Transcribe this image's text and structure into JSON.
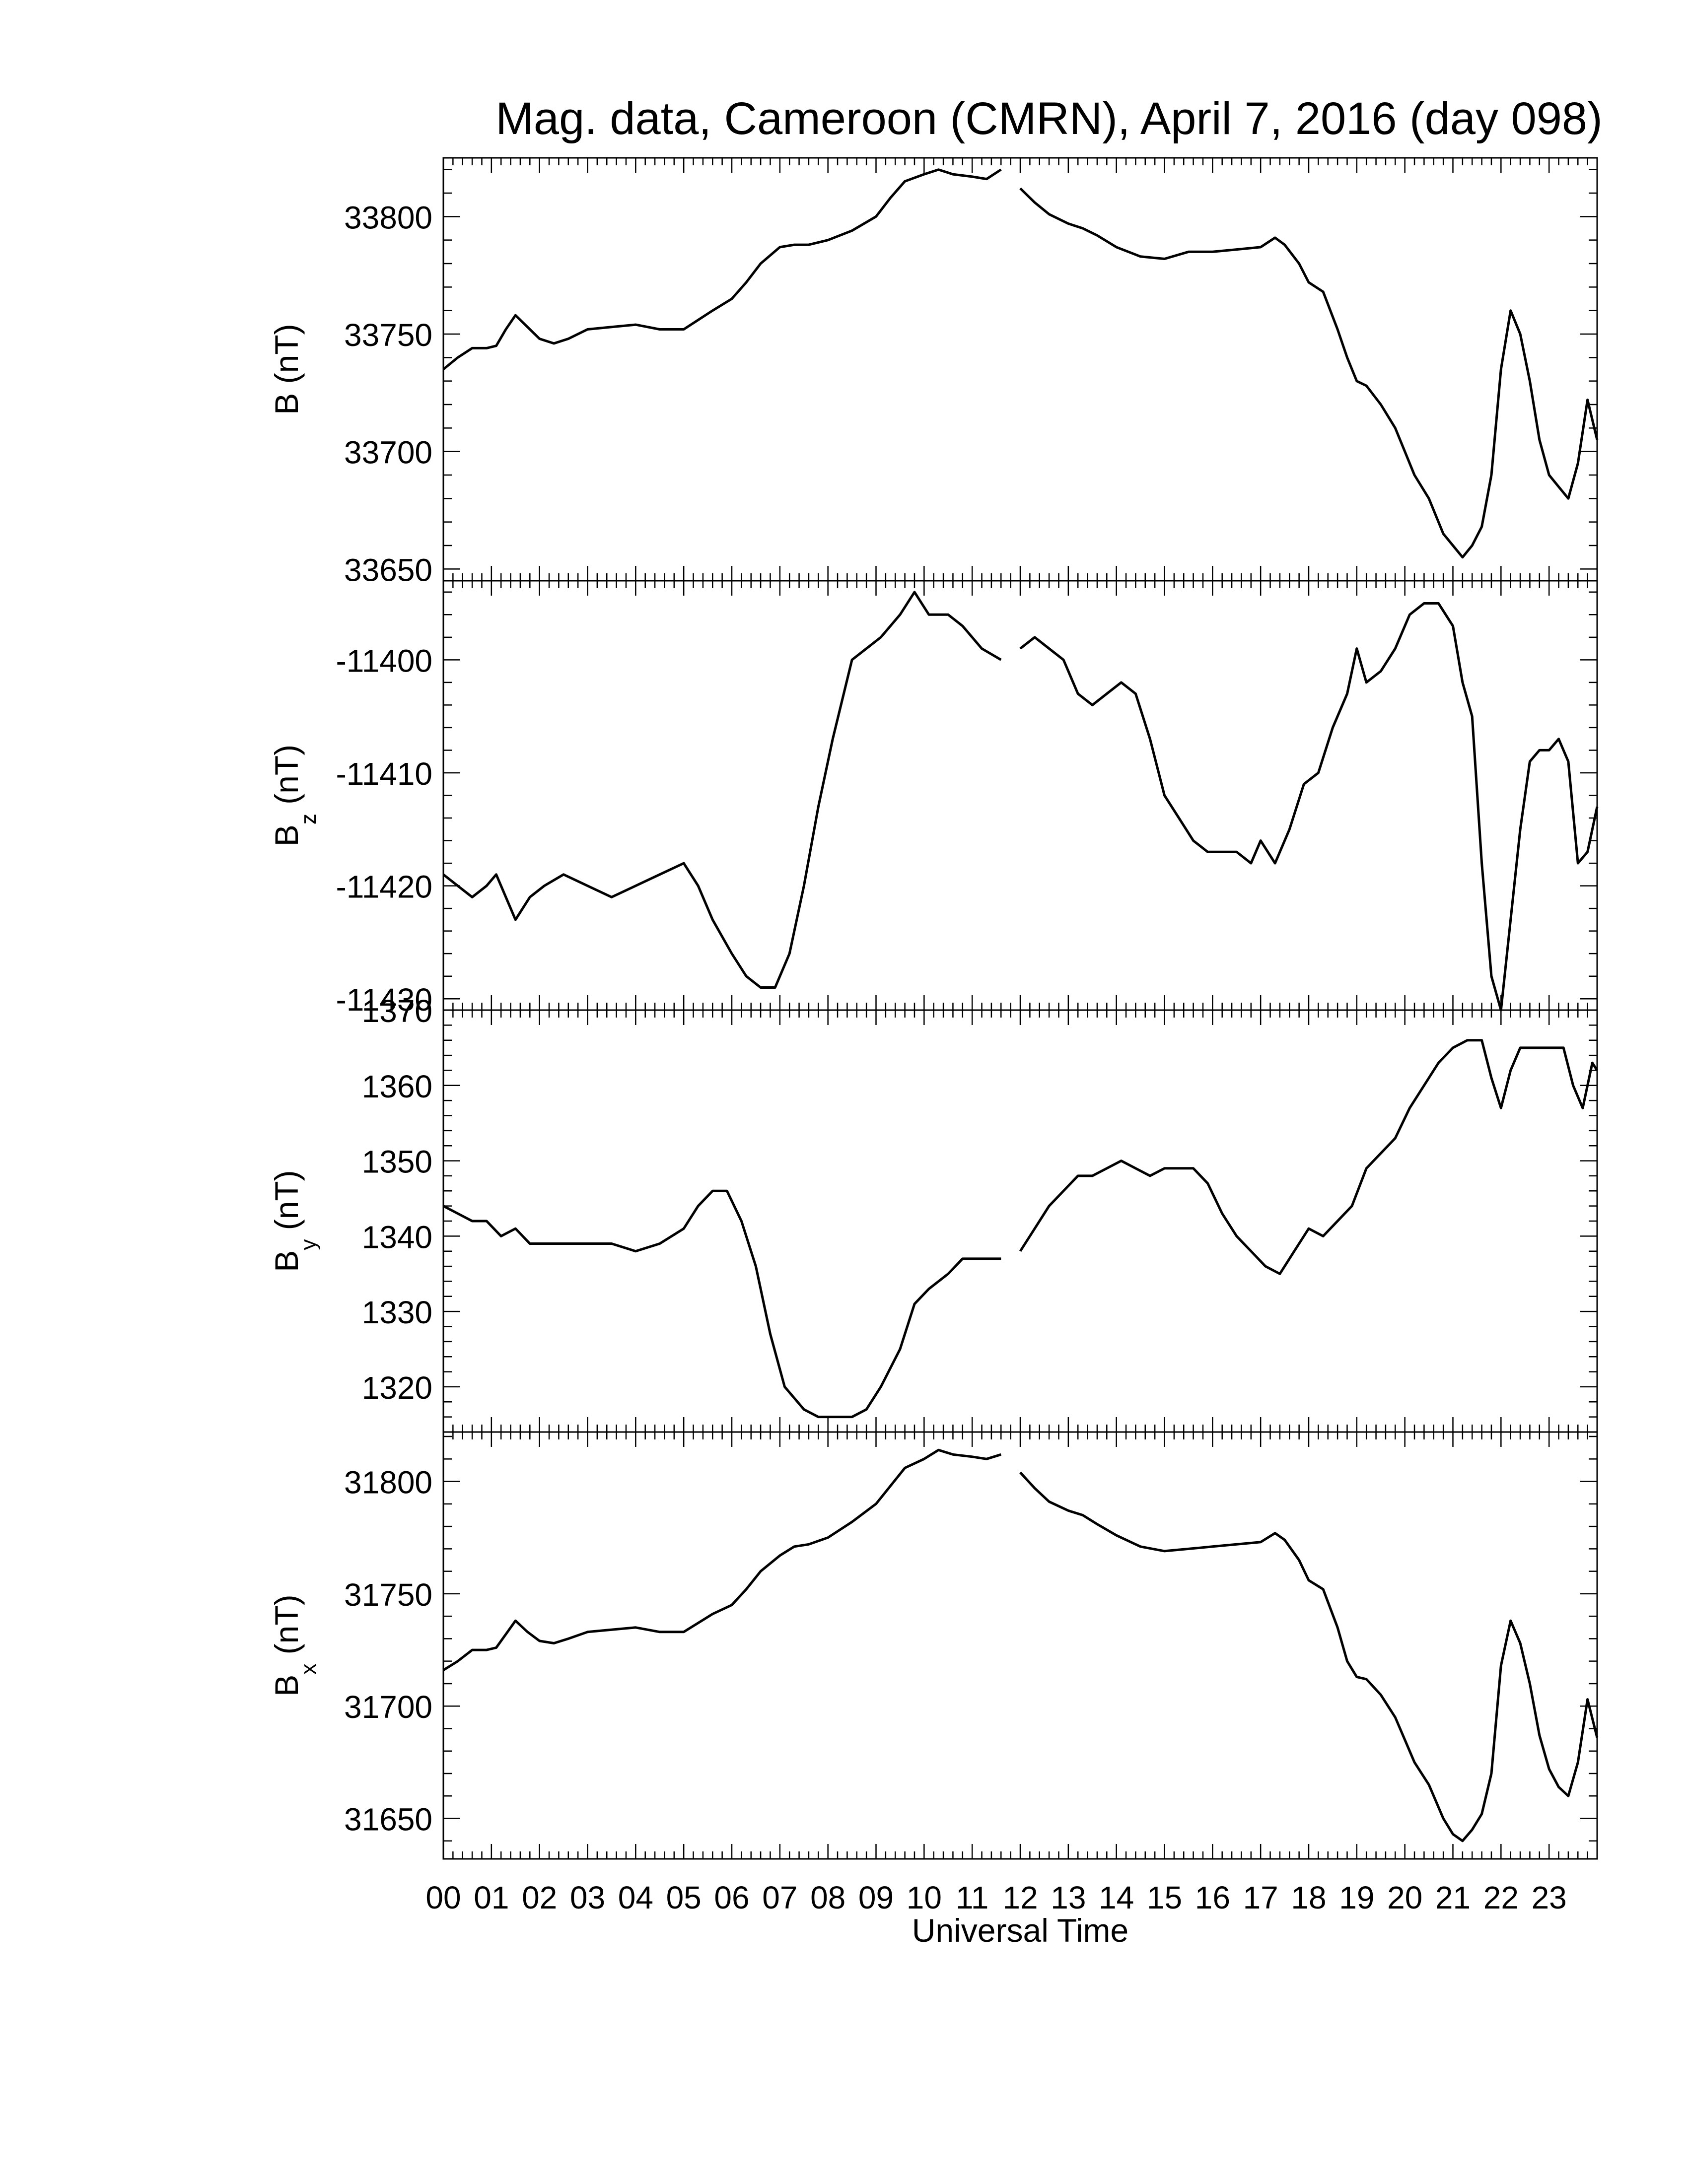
{
  "title": "Mag. data, Cameroon (CMRN), April 7, 2016 (day 098)",
  "xlabel": "Universal Time",
  "x_ticks": [
    "00",
    "01",
    "02",
    "03",
    "04",
    "05",
    "06",
    "07",
    "08",
    "09",
    "10",
    "11",
    "12",
    "13",
    "14",
    "15",
    "16",
    "17",
    "18",
    "19",
    "20",
    "21",
    "22",
    "23"
  ],
  "colors": {
    "line": "#000000",
    "background": "#ffffff"
  },
  "chart_data": [
    {
      "type": "line",
      "ylabel_main": "B",
      "ylabel_sub": "",
      "ylabel_unit": " (nT)",
      "xlim": [
        0,
        24
      ],
      "ylim": [
        33645,
        33825
      ],
      "yticks": [
        33650,
        33700,
        33750,
        33800
      ],
      "ytick_labels": [
        "33650",
        "33700",
        "33750",
        "33800"
      ],
      "gaps": [
        [
          11.6,
          12.0
        ]
      ],
      "series": [
        {
          "x": [
            0,
            0.3,
            0.6,
            0.9,
            1.1,
            1.3,
            1.5,
            1.75,
            2.0,
            2.3,
            2.6,
            3.0,
            3.5,
            4.0,
            4.5,
            5.0,
            5.3,
            5.6,
            6.0,
            6.3,
            6.6,
            7.0,
            7.3,
            7.6,
            8.0,
            8.5,
            9.0,
            9.3,
            9.6,
            10.0,
            10.3,
            10.6,
            11.0,
            11.3,
            11.6,
            12.0,
            12.3,
            12.6,
            13.0,
            13.3,
            13.6,
            14.0,
            14.5,
            15.0,
            15.5,
            16.0,
            16.5,
            17.0,
            17.3,
            17.5,
            17.8,
            18.0,
            18.3,
            18.6,
            18.8,
            19.0,
            19.2,
            19.5,
            19.8,
            20.0,
            20.2,
            20.5,
            20.8,
            21.0,
            21.2,
            21.4,
            21.6,
            21.8,
            22.0,
            22.2,
            22.4,
            22.6,
            22.8,
            23.0,
            23.2,
            23.4,
            23.6,
            23.8,
            24.0
          ],
          "y": [
            33735,
            33740,
            33744,
            33744,
            33745,
            33752,
            33758,
            33753,
            33748,
            33746,
            33748,
            33752,
            33753,
            33754,
            33752,
            33752,
            33756,
            33760,
            33765,
            33772,
            33780,
            33787,
            33788,
            33788,
            33790,
            33794,
            33800,
            33808,
            33815,
            33818,
            33820,
            33818,
            33817,
            33816,
            33820,
            33812,
            33806,
            33801,
            33797,
            33795,
            33792,
            33787,
            33783,
            33782,
            33785,
            33785,
            33786,
            33787,
            33791,
            33788,
            33780,
            33772,
            33768,
            33752,
            33740,
            33730,
            33728,
            33720,
            33710,
            33700,
            33690,
            33680,
            33665,
            33660,
            33655,
            33660,
            33668,
            33690,
            33735,
            33760,
            33750,
            33730,
            33705,
            33690,
            33685,
            33680,
            33695,
            33722,
            33705
          ]
        }
      ]
    },
    {
      "type": "line",
      "ylabel_main": "B",
      "ylabel_sub": "z",
      "ylabel_unit": " (nT)",
      "xlim": [
        0,
        24
      ],
      "ylim": [
        -11431,
        -11393
      ],
      "yticks": [
        -11430,
        -11420,
        -11410,
        -11400
      ],
      "ytick_labels": [
        "-11430",
        "-11420",
        "-11410",
        "-11400"
      ],
      "gaps": [
        [
          11.6,
          12.0
        ]
      ],
      "series": [
        {
          "x": [
            0,
            0.3,
            0.6,
            0.9,
            1.1,
            1.3,
            1.5,
            1.8,
            2.1,
            2.5,
            3.0,
            3.5,
            4.0,
            4.5,
            5.0,
            5.3,
            5.6,
            6.0,
            6.3,
            6.6,
            6.9,
            7.2,
            7.5,
            7.8,
            8.1,
            8.5,
            8.8,
            9.1,
            9.5,
            9.8,
            10.1,
            10.5,
            10.8,
            11.2,
            11.6,
            12.0,
            12.3,
            12.6,
            12.9,
            13.2,
            13.5,
            13.8,
            14.1,
            14.4,
            14.7,
            15.0,
            15.3,
            15.6,
            15.9,
            16.2,
            16.5,
            16.8,
            17.0,
            17.3,
            17.6,
            17.9,
            18.2,
            18.5,
            18.8,
            19.0,
            19.2,
            19.5,
            19.8,
            20.1,
            20.4,
            20.7,
            21.0,
            21.2,
            21.4,
            21.6,
            21.8,
            22.0,
            22.2,
            22.4,
            22.6,
            22.8,
            23.0,
            23.2,
            23.4,
            23.6,
            23.8,
            24.0
          ],
          "y": [
            -11419,
            -11420,
            -11421,
            -11420,
            -11419,
            -11421,
            -11423,
            -11421,
            -11420,
            -11419,
            -11420,
            -11421,
            -11420,
            -11419,
            -11418,
            -11420,
            -11423,
            -11426,
            -11428,
            -11429,
            -11429,
            -11426,
            -11420,
            -11413,
            -11407,
            -11400,
            -11399,
            -11398,
            -11396,
            -11394,
            -11396,
            -11396,
            -11397,
            -11399,
            -11400,
            -11399,
            -11398,
            -11399,
            -11400,
            -11403,
            -11404,
            -11403,
            -11402,
            -11403,
            -11407,
            -11412,
            -11414,
            -11416,
            -11417,
            -11417,
            -11417,
            -11418,
            -11416,
            -11418,
            -11415,
            -11411,
            -11410,
            -11406,
            -11403,
            -11399,
            -11402,
            -11401,
            -11399,
            -11396,
            -11395,
            -11395,
            -11397,
            -11402,
            -11405,
            -11418,
            -11428,
            -11431,
            -11423,
            -11415,
            -11409,
            -11408,
            -11408,
            -11407,
            -11409,
            -11418,
            -11417,
            -11413
          ]
        }
      ]
    },
    {
      "type": "line",
      "ylabel_main": "B",
      "ylabel_sub": "y",
      "ylabel_unit": " (nT)",
      "xlim": [
        0,
        24
      ],
      "ylim": [
        1314,
        1370
      ],
      "yticks": [
        1320,
        1330,
        1340,
        1350,
        1360,
        1370
      ],
      "ytick_labels": [
        "1320",
        "1330",
        "1340",
        "1350",
        "1360",
        "1370"
      ],
      "gaps": [
        [
          11.6,
          12.0
        ]
      ],
      "series": [
        {
          "x": [
            0,
            0.3,
            0.6,
            0.9,
            1.2,
            1.5,
            1.8,
            2.1,
            2.5,
            3.0,
            3.5,
            4.0,
            4.5,
            5.0,
            5.3,
            5.6,
            5.9,
            6.2,
            6.5,
            6.8,
            7.1,
            7.5,
            7.8,
            8.1,
            8.5,
            8.8,
            9.1,
            9.5,
            9.8,
            10.1,
            10.5,
            10.8,
            11.2,
            11.6,
            12.0,
            12.3,
            12.6,
            12.9,
            13.2,
            13.5,
            13.8,
            14.1,
            14.4,
            14.7,
            15.0,
            15.3,
            15.6,
            15.9,
            16.2,
            16.5,
            16.8,
            17.1,
            17.4,
            17.7,
            18.0,
            18.3,
            18.6,
            18.9,
            19.2,
            19.5,
            19.8,
            20.1,
            20.4,
            20.7,
            21.0,
            21.3,
            21.6,
            21.8,
            22.0,
            22.2,
            22.4,
            22.7,
            23.0,
            23.3,
            23.5,
            23.7,
            23.9,
            24.0
          ],
          "y": [
            1344,
            1343,
            1342,
            1342,
            1340,
            1341,
            1339,
            1339,
            1339,
            1339,
            1339,
            1338,
            1339,
            1341,
            1344,
            1346,
            1346,
            1342,
            1336,
            1327,
            1320,
            1317,
            1316,
            1316,
            1316,
            1317,
            1320,
            1325,
            1331,
            1333,
            1335,
            1337,
            1337,
            1337,
            1338,
            1341,
            1344,
            1346,
            1348,
            1348,
            1349,
            1350,
            1349,
            1348,
            1349,
            1349,
            1349,
            1347,
            1343,
            1340,
            1338,
            1336,
            1335,
            1338,
            1341,
            1340,
            1342,
            1344,
            1349,
            1351,
            1353,
            1357,
            1360,
            1363,
            1365,
            1366,
            1366,
            1361,
            1357,
            1362,
            1365,
            1365,
            1365,
            1365,
            1360,
            1357,
            1363,
            1362
          ]
        }
      ]
    },
    {
      "type": "line",
      "ylabel_main": "B",
      "ylabel_sub": "x",
      "ylabel_unit": " (nT)",
      "xlim": [
        0,
        24
      ],
      "ylim": [
        31632,
        31822
      ],
      "yticks": [
        31650,
        31700,
        31750,
        31800
      ],
      "ytick_labels": [
        "31650",
        "31700",
        "31750",
        "31800"
      ],
      "gaps": [
        [
          11.6,
          12.0
        ]
      ],
      "series": [
        {
          "x": [
            0,
            0.3,
            0.6,
            0.9,
            1.1,
            1.3,
            1.5,
            1.75,
            2.0,
            2.3,
            2.6,
            3.0,
            3.5,
            4.0,
            4.5,
            5.0,
            5.3,
            5.6,
            6.0,
            6.3,
            6.6,
            7.0,
            7.3,
            7.6,
            8.0,
            8.5,
            9.0,
            9.3,
            9.6,
            10.0,
            10.3,
            10.6,
            11.0,
            11.3,
            11.6,
            12.0,
            12.3,
            12.6,
            13.0,
            13.3,
            13.6,
            14.0,
            14.5,
            15.0,
            15.5,
            16.0,
            16.5,
            17.0,
            17.3,
            17.5,
            17.8,
            18.0,
            18.3,
            18.6,
            18.8,
            19.0,
            19.2,
            19.5,
            19.8,
            20.0,
            20.2,
            20.5,
            20.8,
            21.0,
            21.2,
            21.4,
            21.6,
            21.8,
            22.0,
            22.2,
            22.4,
            22.6,
            22.8,
            23.0,
            23.2,
            23.4,
            23.6,
            23.8,
            24.0
          ],
          "y": [
            31716,
            31720,
            31725,
            31725,
            31726,
            31732,
            31738,
            31733,
            31729,
            31728,
            31730,
            31733,
            31734,
            31735,
            31733,
            31733,
            31737,
            31741,
            31745,
            31752,
            31760,
            31767,
            31771,
            31772,
            31775,
            31782,
            31790,
            31798,
            31806,
            31810,
            31814,
            31812,
            31811,
            31810,
            31812,
            31804,
            31797,
            31791,
            31787,
            31785,
            31781,
            31776,
            31771,
            31769,
            31770,
            31771,
            31772,
            31773,
            31777,
            31774,
            31765,
            31756,
            31752,
            31735,
            31720,
            31713,
            31712,
            31705,
            31695,
            31685,
            31675,
            31665,
            31650,
            31643,
            31640,
            31645,
            31652,
            31670,
            31718,
            31738,
            31728,
            31710,
            31687,
            31672,
            31664,
            31660,
            31675,
            31703,
            31686
          ]
        }
      ]
    }
  ]
}
